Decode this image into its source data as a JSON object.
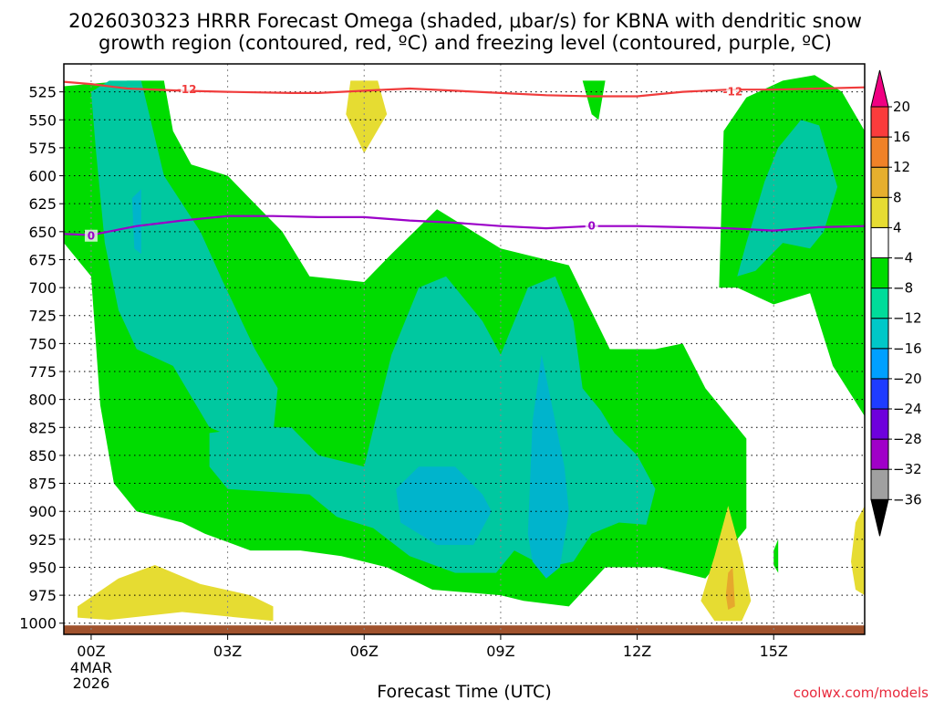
{
  "title_lines": [
    "2026030323 HRRR Forecast Omega (shaded, μbar/s) for KBNA with dendritic snow",
    "growth region (contoured, red, ºC) and freezing level (contoured, purple, ºC)"
  ],
  "xlabel": "Forecast Time (UTC)",
  "credit": "coolwx.com/models",
  "chart_data": {
    "type": "contour",
    "x_unit_hours_from": "00Z",
    "xlim": [
      -0.6,
      17.0
    ],
    "x_ticks": [
      {
        "hour": 0,
        "label": "00Z"
      },
      {
        "hour": 3,
        "label": "03Z"
      },
      {
        "hour": 6,
        "label": "06Z"
      },
      {
        "hour": 9,
        "label": "09Z"
      },
      {
        "hour": 12,
        "label": "12Z"
      },
      {
        "hour": 15,
        "label": "15Z"
      }
    ],
    "x_date_lines": [
      "4MAR",
      "2026"
    ],
    "ylim": [
      500,
      1010
    ],
    "y_ticks": [
      525,
      550,
      575,
      600,
      625,
      650,
      675,
      700,
      725,
      750,
      775,
      800,
      825,
      850,
      875,
      900,
      925,
      950,
      975,
      1000
    ],
    "colorbar": {
      "levels": [
        -36,
        -32,
        -28,
        -24,
        -20,
        -16,
        -12,
        -8,
        -4,
        4,
        8,
        12,
        16,
        20
      ],
      "labels": [
        "20",
        "16",
        "12",
        "8",
        "4",
        "−4",
        "−8",
        "−12",
        "−16",
        "−20",
        "−24",
        "−28",
        "−32",
        "−36"
      ],
      "colors": [
        "#000000",
        "#a0a0a0",
        "#a000c8",
        "#6e00dc",
        "#1e3cff",
        "#00a0ff",
        "#00c8c8",
        "#00dc9a",
        "#00dc00",
        "#ffffff",
        "#e6dc32",
        "#e6af2d",
        "#f08228",
        "#fa3c3c",
        "#f00082"
      ]
    },
    "shaded_regions": [
      {
        "level": "-4",
        "color": "#00dc00",
        "points": [
          [
            -0.6,
            1000
          ],
          [
            -0.6,
            520
          ],
          [
            0.8,
            515
          ],
          [
            1.6,
            515
          ],
          [
            1.8,
            560
          ],
          [
            2.2,
            590
          ],
          [
            3.0,
            600
          ],
          [
            3.6,
            625
          ],
          [
            4.2,
            650
          ],
          [
            4.8,
            690
          ],
          [
            6.0,
            695
          ],
          [
            6.6,
            670
          ],
          [
            7.6,
            630
          ],
          [
            9.0,
            665
          ],
          [
            10.5,
            680
          ],
          [
            11.4,
            755
          ],
          [
            12.4,
            755
          ],
          [
            13.0,
            750
          ],
          [
            13.5,
            790
          ],
          [
            13.8,
            805
          ],
          [
            14.4,
            835
          ],
          [
            14.4,
            915
          ],
          [
            13.5,
            960
          ],
          [
            12.5,
            950
          ],
          [
            11.3,
            950
          ],
          [
            10.5,
            985
          ],
          [
            9.5,
            980
          ],
          [
            9.0,
            975
          ],
          [
            7.5,
            970
          ],
          [
            6.5,
            950
          ],
          [
            5.5,
            940
          ],
          [
            4.6,
            935
          ],
          [
            3.5,
            935
          ],
          [
            2.5,
            920
          ],
          [
            2.0,
            910
          ],
          [
            1.0,
            900
          ],
          [
            0.5,
            875
          ],
          [
            0.2,
            805
          ],
          [
            0,
            690
          ],
          [
            -0.6,
            660
          ]
        ]
      },
      {
        "level": "-4",
        "color": "#00dc00",
        "points": [
          [
            13.8,
            700
          ],
          [
            13.9,
            560
          ],
          [
            14.4,
            530
          ],
          [
            15.2,
            515
          ],
          [
            15.9,
            510
          ],
          [
            16.5,
            525
          ],
          [
            17.0,
            560
          ],
          [
            17.0,
            815
          ],
          [
            16.3,
            770
          ],
          [
            15.8,
            705
          ],
          [
            15.0,
            715
          ],
          [
            14.2,
            700
          ]
        ]
      },
      {
        "level": "-4",
        "color": "#00dc00",
        "points": [
          [
            10.8,
            515
          ],
          [
            11.3,
            515
          ],
          [
            11.15,
            550
          ],
          [
            11.0,
            545
          ]
        ]
      },
      {
        "level": "-8",
        "color": "#00c8a0",
        "points": [
          [
            0,
            525
          ],
          [
            0.4,
            515
          ],
          [
            1.1,
            515
          ],
          [
            1.6,
            600
          ],
          [
            2.4,
            650
          ],
          [
            2.9,
            695
          ],
          [
            3.6,
            755
          ],
          [
            4.1,
            790
          ],
          [
            4.0,
            830
          ],
          [
            3.2,
            835
          ],
          [
            2.6,
            825
          ],
          [
            1.8,
            770
          ],
          [
            1.0,
            755
          ],
          [
            0.6,
            720
          ],
          [
            0.3,
            660
          ],
          [
            0.1,
            575
          ]
        ]
      },
      {
        "level": "-8",
        "color": "#00c8a0",
        "points": [
          [
            2.6,
            830
          ],
          [
            3.6,
            825
          ],
          [
            4.4,
            825
          ],
          [
            5.0,
            850
          ],
          [
            6.0,
            860
          ],
          [
            6.6,
            760
          ],
          [
            7.2,
            700
          ],
          [
            7.8,
            690
          ],
          [
            8.6,
            730
          ],
          [
            9.0,
            760
          ],
          [
            9.6,
            700
          ],
          [
            10.2,
            690
          ],
          [
            10.6,
            730
          ],
          [
            10.8,
            790
          ],
          [
            11.2,
            810
          ],
          [
            11.5,
            830
          ],
          [
            12.0,
            850
          ],
          [
            12.4,
            880
          ],
          [
            12.2,
            912
          ],
          [
            11.6,
            910
          ],
          [
            11.0,
            920
          ],
          [
            10.6,
            945
          ],
          [
            10.0,
            950
          ],
          [
            9.3,
            935
          ],
          [
            8.9,
            955
          ],
          [
            8.0,
            955
          ],
          [
            7.0,
            940
          ],
          [
            6.2,
            915
          ],
          [
            5.4,
            905
          ],
          [
            4.8,
            885
          ],
          [
            3.0,
            880
          ],
          [
            2.6,
            860
          ]
        ]
      },
      {
        "level": "-8",
        "color": "#00c8a0",
        "points": [
          [
            14.2,
            690
          ],
          [
            14.4,
            660
          ],
          [
            14.8,
            605
          ],
          [
            15.1,
            575
          ],
          [
            15.6,
            550
          ],
          [
            16.0,
            555
          ],
          [
            16.4,
            610
          ],
          [
            16.1,
            650
          ],
          [
            15.8,
            665
          ],
          [
            15.2,
            660
          ],
          [
            14.6,
            685
          ]
        ]
      },
      {
        "level": "-12",
        "color": "#00b4cc",
        "points": [
          [
            0.9,
            620
          ],
          [
            1.1,
            612
          ],
          [
            1.1,
            670
          ],
          [
            0.95,
            665
          ]
        ]
      },
      {
        "level": "-12",
        "color": "#00b4cc",
        "points": [
          [
            6.7,
            880
          ],
          [
            7.2,
            860
          ],
          [
            8.0,
            860
          ],
          [
            8.6,
            885
          ],
          [
            8.8,
            900
          ],
          [
            8.4,
            930
          ],
          [
            7.6,
            930
          ],
          [
            6.8,
            910
          ]
        ]
      },
      {
        "level": "-12",
        "color": "#00b4cc",
        "points": [
          [
            9.6,
            920
          ],
          [
            9.7,
            820
          ],
          [
            9.9,
            760
          ],
          [
            10.1,
            800
          ],
          [
            10.4,
            860
          ],
          [
            10.5,
            900
          ],
          [
            10.3,
            950
          ],
          [
            10.0,
            960
          ],
          [
            9.7,
            945
          ]
        ]
      },
      {
        "level": "4",
        "color": "#e6dc32",
        "points": [
          [
            5.7,
            515
          ],
          [
            6.3,
            515
          ],
          [
            6.5,
            545
          ],
          [
            6.0,
            580
          ],
          [
            5.6,
            545
          ]
        ]
      },
      {
        "level": "4",
        "color": "#e6dc32",
        "points": [
          [
            -0.3,
            995
          ],
          [
            -0.3,
            985
          ],
          [
            0.6,
            960
          ],
          [
            1.4,
            948
          ],
          [
            2.4,
            965
          ],
          [
            3.5,
            975
          ],
          [
            4.0,
            985
          ],
          [
            4.0,
            998
          ],
          [
            2.0,
            990
          ],
          [
            0.4,
            997
          ]
        ]
      },
      {
        "level": "4",
        "color": "#e6dc32",
        "points": [
          [
            13.4,
            980
          ],
          [
            13.7,
            940
          ],
          [
            14.0,
            895
          ],
          [
            14.3,
            940
          ],
          [
            14.5,
            980
          ],
          [
            14.3,
            998
          ],
          [
            13.7,
            998
          ]
        ]
      },
      {
        "level": "4",
        "color": "#e6dc32",
        "points": [
          [
            16.7,
            945
          ],
          [
            16.8,
            910
          ],
          [
            17.0,
            895
          ],
          [
            17.0,
            975
          ],
          [
            16.8,
            970
          ]
        ]
      },
      {
        "level": "8",
        "color": "#e6a82d",
        "points": [
          [
            13.95,
            975
          ],
          [
            14.0,
            955
          ],
          [
            14.1,
            950
          ],
          [
            14.15,
            985
          ],
          [
            14.0,
            988
          ]
        ]
      },
      {
        "level": "-4",
        "color": "#00dc00",
        "points": [
          [
            15.0,
            935
          ],
          [
            15.1,
            925
          ],
          [
            15.1,
            955
          ],
          [
            15.0,
            948
          ]
        ]
      }
    ],
    "surface_band": {
      "color": "#a0522d",
      "pressure_top": 1002
    },
    "contours": [
      {
        "name": "dendritic snow growth region",
        "value": "-12",
        "color": "#f03c3c",
        "points": [
          [
            -0.6,
            516
          ],
          [
            0,
            518
          ],
          [
            0.8,
            522
          ],
          [
            2,
            524
          ],
          [
            3,
            525
          ],
          [
            4.4,
            526
          ],
          [
            5,
            526
          ],
          [
            6,
            524
          ],
          [
            7,
            522
          ],
          [
            8,
            524
          ],
          [
            9,
            526
          ],
          [
            10,
            528
          ],
          [
            11,
            529
          ],
          [
            12,
            529
          ],
          [
            13,
            525
          ],
          [
            14,
            523
          ],
          [
            15,
            523
          ],
          [
            16,
            522
          ],
          [
            17,
            521
          ]
        ],
        "label_at": [
          [
            2.1,
            523
          ],
          [
            14.1,
            525
          ]
        ]
      },
      {
        "name": "freezing level",
        "value": "0",
        "color": "#9b00c8",
        "points": [
          [
            -0.6,
            652
          ],
          [
            0,
            653
          ],
          [
            1,
            645
          ],
          [
            2,
            640
          ],
          [
            3,
            636
          ],
          [
            4,
            636
          ],
          [
            5,
            637
          ],
          [
            6,
            637
          ],
          [
            7,
            640
          ],
          [
            8,
            642
          ],
          [
            9,
            645
          ],
          [
            10,
            647
          ],
          [
            11,
            645
          ],
          [
            12,
            645
          ],
          [
            13,
            646
          ],
          [
            14,
            647
          ],
          [
            15,
            649
          ],
          [
            16,
            646
          ],
          [
            17,
            645
          ]
        ],
        "label_at": [
          [
            0,
            654
          ],
          [
            11,
            645
          ]
        ]
      }
    ]
  }
}
